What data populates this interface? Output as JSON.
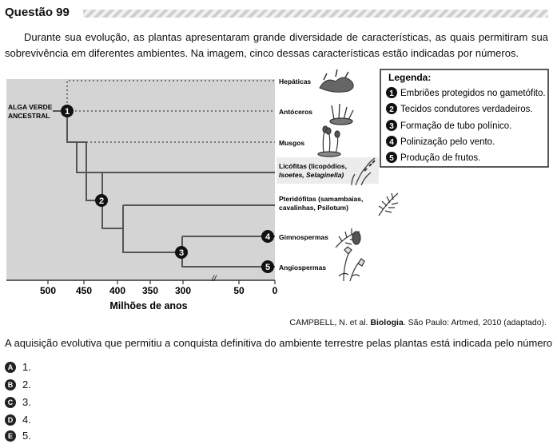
{
  "header": {
    "title": "Questão 99"
  },
  "intro": "Durante sua evolução, as plantas apresentaram grande diversidade de características, as quais permitiram sua sobrevivência em diferentes ambientes. Na imagem, cinco dessas características estão indicadas por números.",
  "figure": {
    "ancestor": [
      "ALGA VERDE",
      "ANCESTRAL"
    ],
    "taxa": {
      "hepaticas": "Hepáticas",
      "antoceros": "Antóceros",
      "musgos": "Musgos",
      "licofitas_line1": "Licófitas (licopódios,",
      "licofitas_line2": "Isoetes, Selaginella)",
      "pteridofitas_line1": "Pteridófitas (samambaias,",
      "pteridofitas_line2": "cavalinhas, Psilotum)",
      "gimnospermas": "Gimnospermas",
      "angiospermas": "Angiospermas"
    },
    "node_numbers": [
      "1",
      "2",
      "3",
      "4",
      "5"
    ],
    "axis": {
      "ticks": [
        "500",
        "450",
        "400",
        "350",
        "300",
        "50",
        "0"
      ],
      "break_mark": "//",
      "label": "Milhões de anos"
    },
    "legend": {
      "title": "Legenda:",
      "items": [
        {
          "num": "1",
          "text": "Embriões protegidos no gametófito."
        },
        {
          "num": "2",
          "text": "Tecidos condutores verdadeiros."
        },
        {
          "num": "3",
          "text": "Formação de tubo polínico."
        },
        {
          "num": "4",
          "text": "Polinização pelo vento."
        },
        {
          "num": "5",
          "text": "Produção de frutos."
        }
      ]
    }
  },
  "citation": {
    "before": "CAMPBELL, N. et al. ",
    "bold": "Biologia",
    "after": ". São Paulo: Artmed, 2010 (adaptado)."
  },
  "question": "A aquisição evolutiva que permitiu a conquista definitiva do ambiente terrestre pelas plantas está indicada pelo número",
  "options": [
    {
      "letter": "A",
      "text": "1."
    },
    {
      "letter": "B",
      "text": "2."
    },
    {
      "letter": "C",
      "text": "3."
    },
    {
      "letter": "D",
      "text": "4."
    },
    {
      "letter": "E",
      "text": "5."
    }
  ]
}
